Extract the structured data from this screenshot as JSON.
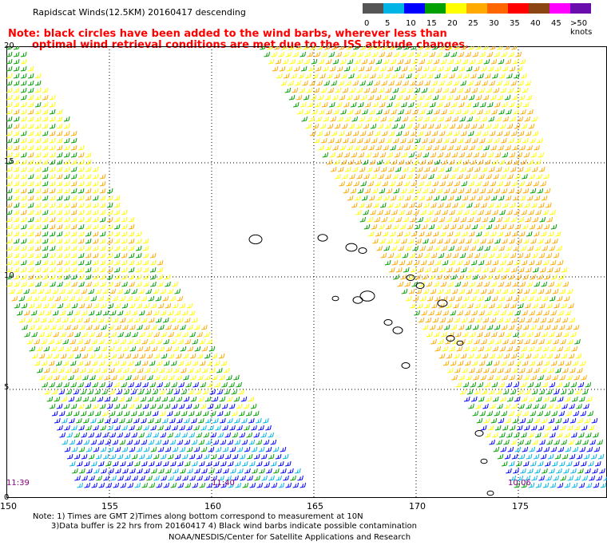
{
  "header": {
    "title": "Rapidscat Winds(12.5KM) 20160417 descending",
    "note_line1": "Note: black circles have been added to the wind barbs, wherever less than",
    "note_line2": "optimal wind retrieval conditions are met due to the ISS attitude changes."
  },
  "color_scale": {
    "labels": [
      "0",
      "5",
      "10",
      "15",
      "20",
      "25",
      "30",
      "35",
      "40",
      "45",
      ">50 knots"
    ],
    "colors": [
      "#555555",
      "#00b4e6",
      "#0000ff",
      "#00a000",
      "#ffff00",
      "#ffaa00",
      "#ff6600",
      "#ff0000",
      "#8b4513",
      "#ff00ff",
      "#6a0dad"
    ]
  },
  "map": {
    "lat_labels": [
      "20",
      "15",
      "10",
      "5",
      "0"
    ],
    "lon_labels": [
      "150",
      "155",
      "160",
      "165",
      "170",
      "175"
    ],
    "time_labels": [
      "11:39",
      "11:40",
      "10:06"
    ]
  },
  "footer": {
    "line1": "Note: 1) Times are GMT 2)Times along bottom correspond to measurement at 10N",
    "line2": "3)Data buffer is 22 hrs from 20160417 4) Black wind barbs indicate possible contamination",
    "line3": "NOAA/NESDIS/Center for Satellite Applications and Research"
  }
}
